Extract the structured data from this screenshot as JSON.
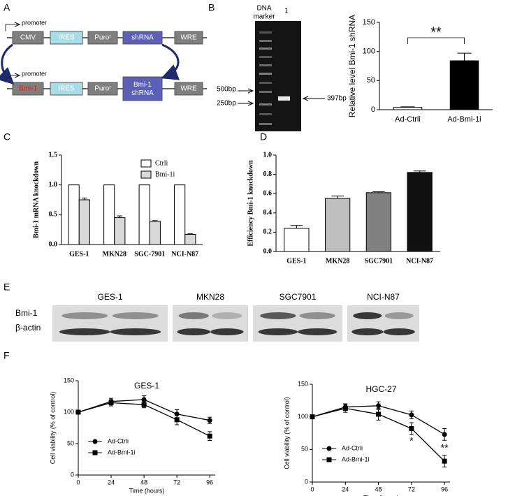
{
  "panel_labels": [
    "A",
    "B",
    "C",
    "D",
    "E",
    "F"
  ],
  "diagram": {
    "rows": [
      {
        "promoter": "promoter",
        "parts": [
          "CMV",
          "IRES",
          "Puroʳ",
          "shRNA",
          "WRE"
        ]
      },
      {
        "promoter": "promoter",
        "parts": [
          "Bmi-1",
          "IRES",
          "Puroʳ",
          [
            "Bmi-1",
            "shRNA"
          ],
          "WRE"
        ]
      }
    ]
  },
  "gel": {
    "marker_lane": [
      "DNA",
      "marker"
    ],
    "sample_lane": "1",
    "size_labels": [
      "500bp",
      "250bp"
    ],
    "band_label": "397bp"
  },
  "blot": {
    "columns": [
      "GES-1",
      "MKN28",
      "SGC7901",
      "NCI-N87"
    ],
    "rows": [
      "Bmi-1",
      "β-actin"
    ]
  },
  "chart_data": [
    {
      "type": "bar",
      "ylabel": "Relative level Bmi-1 shRNA",
      "categories": [
        "Ad-Ctrli",
        "Ad-Bmi-1i"
      ],
      "values": [
        4,
        84
      ],
      "errors": [
        1,
        13
      ],
      "colors": [
        "#ffffff",
        "#000000"
      ],
      "ylim": [
        0,
        150
      ],
      "yticks": [
        0,
        50,
        100,
        150
      ],
      "annotations": [
        "**"
      ]
    },
    {
      "type": "bar",
      "ylabel": "Bmi-1 mRNA knockdown",
      "categories": [
        "GES-1",
        "MKN28",
        "SGC-7901",
        "NCI-N87"
      ],
      "series": [
        {
          "name": "Ctrli",
          "color": "#ffffff",
          "values": [
            1,
            1,
            1,
            1
          ]
        },
        {
          "name": "Bmi-1i",
          "color": "#d9d9d9",
          "values": [
            0.75,
            0.45,
            0.39,
            0.17
          ],
          "errors": [
            0.03,
            0.03,
            0.01,
            0.01
          ]
        }
      ],
      "ylim": [
        0,
        1.5
      ],
      "yticks": [
        {
          "value": 0,
          "label": "0.0"
        },
        0.5,
        {
          "value": 1,
          "label": "1.0"
        },
        1.5
      ],
      "legend": "upper right"
    },
    {
      "type": "bar",
      "ylabel": "Efficiency Bmi-1 knockdown",
      "categories": [
        "GES-1",
        "MKN28",
        "SGC7901",
        "NCI-N87"
      ],
      "values": [
        0.24,
        0.55,
        0.61,
        0.82
      ],
      "errors": [
        0.03,
        0.025,
        0.01,
        0.015
      ],
      "colors": [
        "#ffffff",
        "#bfbfbf",
        "#808080",
        "#111111"
      ],
      "ylim": [
        0,
        1
      ],
      "yticks": [
        {
          "value": 0,
          "label": "0.0"
        },
        0.2,
        0.4,
        0.6,
        0.8,
        {
          "value": 1,
          "label": "1.0"
        }
      ]
    },
    {
      "type": "line",
      "title": "GES-1",
      "xlabel": "Time (hours)",
      "ylabel": "Cell viability (% of control)",
      "x": [
        0,
        24,
        48,
        72,
        96
      ],
      "series": [
        {
          "name": "Ad-Ctrli",
          "color": "#000000",
          "marker": "circle",
          "values": [
            100,
            117,
            120,
            97,
            87
          ],
          "errors": [
            3,
            5,
            6,
            7,
            5
          ]
        },
        {
          "name": "Ad-Bmi-1i",
          "color": "#000000",
          "marker": "square",
          "values": [
            100,
            115,
            112,
            88,
            62
          ],
          "errors": [
            3,
            5,
            5,
            8,
            7
          ]
        }
      ],
      "xlim": [
        0,
        100
      ],
      "xticks": [
        0,
        24,
        48,
        72,
        96
      ],
      "ylim": [
        0,
        150
      ],
      "yticks": [
        0,
        50,
        100,
        150
      ],
      "legend": "lower left"
    },
    {
      "type": "line",
      "title": "HGC-27",
      "xlabel": "Time (hours)",
      "ylabel": "Cell viability (% of control)",
      "x": [
        0,
        24,
        48,
        72,
        96
      ],
      "series": [
        {
          "name": "Ad-Ctrli",
          "color": "#000000",
          "marker": "circle",
          "values": [
            100,
            115,
            117,
            103,
            73
          ],
          "errors": [
            3,
            5,
            6,
            6,
            9
          ]
        },
        {
          "name": "Ad-Bmi-1i",
          "color": "#000000",
          "marker": "square",
          "values": [
            100,
            113,
            104,
            82,
            32
          ],
          "errors": [
            3,
            6,
            9,
            9,
            9
          ]
        }
      ],
      "xlim": [
        0,
        100
      ],
      "xticks": [
        0,
        24,
        48,
        72,
        96
      ],
      "ylim": [
        0,
        150
      ],
      "yticks": [
        0,
        50,
        100,
        150
      ],
      "legend": "lower left",
      "annotations": [
        "*",
        "**"
      ]
    }
  ]
}
